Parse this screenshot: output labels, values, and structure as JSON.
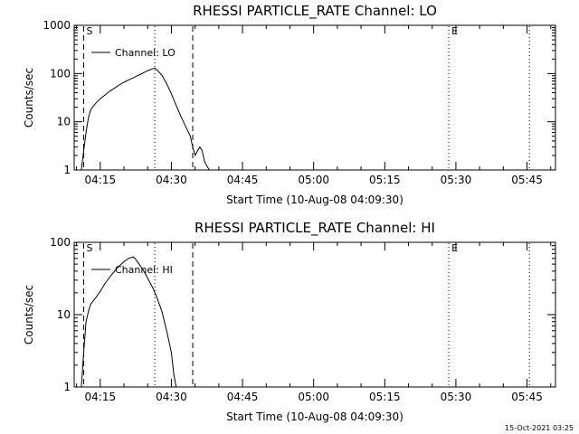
{
  "chart_data": [
    {
      "type": "line",
      "title": "RHESSI PARTICLE_RATE Channel: LO",
      "xlabel": "Start Time (10-Aug-08 04:09:30)",
      "ylabel": "Counts/sec",
      "y_scale": "log",
      "ylim": [
        1,
        1000
      ],
      "y_ticks": [
        "1",
        "10",
        "100",
        "1000"
      ],
      "xlim": [
        "04:09:30",
        "05:51:00"
      ],
      "x_ticks": [
        "04:15",
        "04:30",
        "04:45",
        "05:00",
        "05:15",
        "05:30",
        "05:45"
      ],
      "legend": {
        "label": "Channel: LO",
        "position": "top-left"
      },
      "markers": [
        {
          "time": "04:11:30",
          "style": "dashed",
          "label": "S"
        },
        {
          "time": "04:26:30",
          "style": "dotted",
          "label": ""
        },
        {
          "time": "04:34:30",
          "style": "dashed",
          "label": ""
        },
        {
          "time": "05:28:30",
          "style": "dotted",
          "label": "E"
        },
        {
          "time": "05:45:30",
          "style": "dotted",
          "label": ""
        }
      ],
      "series": [
        {
          "name": "Channel: LO",
          "x": [
            "04:11:00",
            "04:11:30",
            "04:12:00",
            "04:12:30",
            "04:13:00",
            "04:14:00",
            "04:15:00",
            "04:16:00",
            "04:17:00",
            "04:18:00",
            "04:19:00",
            "04:20:00",
            "04:21:00",
            "04:22:00",
            "04:23:00",
            "04:24:00",
            "04:25:00",
            "04:26:00",
            "04:26:30",
            "04:27:00",
            "04:28:00",
            "04:29:00",
            "04:30:00",
            "04:31:00",
            "04:32:00",
            "04:33:00",
            "04:34:00",
            "04:34:30",
            "04:35:00",
            "04:35:30",
            "04:36:00",
            "04:36:30",
            "04:37:00",
            "04:37:30",
            "04:38:00"
          ],
          "y": [
            1,
            2.5,
            6,
            12,
            18,
            24,
            30,
            36,
            43,
            50,
            58,
            66,
            74,
            82,
            92,
            102,
            115,
            125,
            130,
            118,
            92,
            62,
            38,
            22,
            13,
            8,
            5,
            3,
            2,
            2.5,
            3,
            2.5,
            1.5,
            1.2,
            1
          ]
        }
      ]
    },
    {
      "type": "line",
      "title": "RHESSI PARTICLE_RATE Channel: HI",
      "xlabel": "Start Time (10-Aug-08 04:09:30)",
      "ylabel": "Counts/sec",
      "y_scale": "log",
      "ylim": [
        1,
        100
      ],
      "y_ticks": [
        "1",
        "10",
        "100"
      ],
      "xlim": [
        "04:09:30",
        "05:51:00"
      ],
      "x_ticks": [
        "04:15",
        "04:30",
        "04:45",
        "05:00",
        "05:15",
        "05:30",
        "05:45"
      ],
      "legend": {
        "label": "Channel: HI",
        "position": "top-left"
      },
      "markers": [
        {
          "time": "04:11:30",
          "style": "dashed",
          "label": "S"
        },
        {
          "time": "04:26:30",
          "style": "dotted",
          "label": ""
        },
        {
          "time": "04:34:30",
          "style": "dashed",
          "label": ""
        },
        {
          "time": "05:28:30",
          "style": "dotted",
          "label": "E"
        },
        {
          "time": "05:45:30",
          "style": "dotted",
          "label": ""
        }
      ],
      "series": [
        {
          "name": "Channel: HI",
          "x": [
            "04:11:00",
            "04:11:30",
            "04:12:00",
            "04:12:30",
            "04:13:00",
            "04:14:00",
            "04:15:00",
            "04:16:00",
            "04:17:00",
            "04:18:00",
            "04:19:00",
            "04:20:00",
            "04:21:00",
            "04:22:00",
            "04:22:30",
            "04:23:00",
            "04:24:00",
            "04:25:00",
            "04:26:00",
            "04:27:00",
            "04:28:00",
            "04:29:00",
            "04:30:00",
            "04:30:30",
            "04:31:00"
          ],
          "y": [
            1,
            3,
            8,
            11,
            14,
            17,
            21,
            27,
            33,
            40,
            47,
            54,
            60,
            63,
            58,
            52,
            42,
            32,
            24,
            17,
            11,
            6,
            3,
            1.5,
            1
          ]
        }
      ]
    }
  ],
  "footer": {
    "text": "15-Oct-2021 03:25"
  }
}
